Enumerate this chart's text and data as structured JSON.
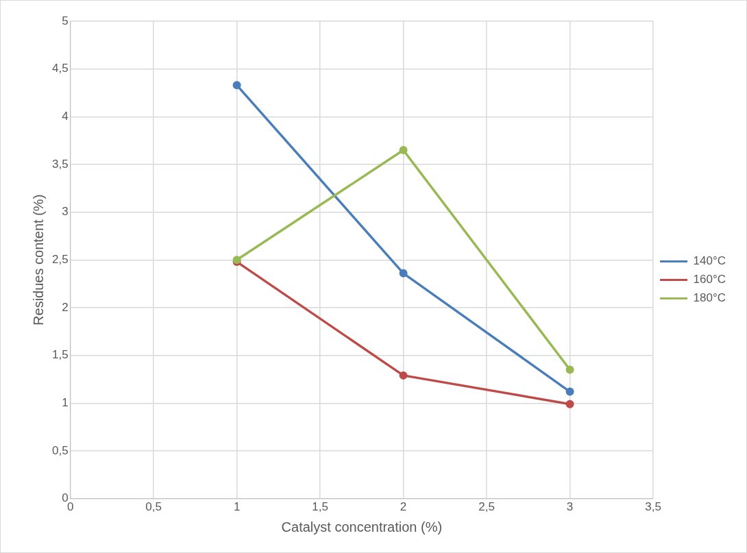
{
  "chart_data": {
    "type": "line",
    "xlabel": "Catalyst concentration (%)",
    "ylabel": "Residues content (%)",
    "x": [
      1,
      2,
      3
    ],
    "series": [
      {
        "name": "140°C",
        "color": "#4a7ebb",
        "values": [
          4.33,
          2.36,
          1.12
        ]
      },
      {
        "name": "160°C",
        "color": "#be4b48",
        "values": [
          2.48,
          1.29,
          0.99
        ]
      },
      {
        "name": "180°C",
        "color": "#98b954",
        "values": [
          2.5,
          3.65,
          1.35
        ]
      }
    ],
    "xlim": [
      0,
      3.5
    ],
    "xticks": [
      0,
      {
        "value": 0.5,
        "label": "0,5"
      },
      1,
      {
        "value": 1.5,
        "label": "1,5"
      },
      2,
      {
        "value": 2.5,
        "label": "2,5"
      },
      3,
      {
        "value": 3.5,
        "label": "3,5"
      }
    ],
    "ylim": [
      0,
      5
    ],
    "yticks": [
      0,
      {
        "value": 0.5,
        "label": "0,5"
      },
      1,
      {
        "value": 1.5,
        "label": "1,5"
      },
      2,
      {
        "value": 2.5,
        "label": "2,5"
      },
      3,
      {
        "value": 3.5,
        "label": "3,5"
      },
      4,
      {
        "value": 4.5,
        "label": "4,5"
      },
      5
    ],
    "grid": true,
    "legend": "right",
    "marker": "circle",
    "line_style": "solid"
  }
}
